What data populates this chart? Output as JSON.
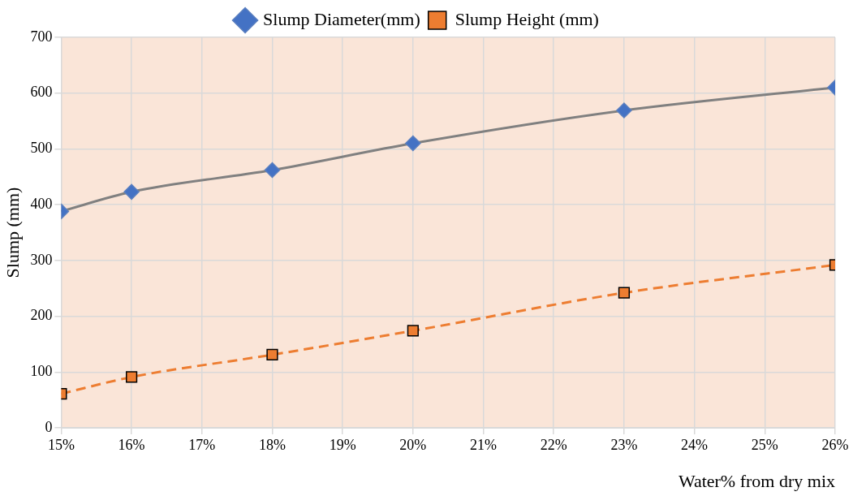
{
  "chart_data": {
    "type": "line",
    "xlabel": "Water% from dry mix",
    "ylabel": "Slump (mm)",
    "x": [
      15,
      16,
      18,
      20,
      23,
      26
    ],
    "series": [
      {
        "name": "Slump Diameter(mm)",
        "color": "#4472c4",
        "values": [
          388,
          423,
          462,
          510,
          569,
          610
        ],
        "marker": "diamond",
        "line_style": "solid"
      },
      {
        "name": "Slump Height (mm)",
        "color": "#ed7d31",
        "values": [
          61,
          91,
          131,
          174,
          242,
          292
        ],
        "marker": "square",
        "line_style": "dashed"
      }
    ],
    "xlim": [
      15,
      26
    ],
    "xticks": [
      {
        "value": 15,
        "label": "15%"
      },
      {
        "value": 16,
        "label": "16%"
      },
      {
        "value": 17,
        "label": "17%"
      },
      {
        "value": 18,
        "label": "18%"
      },
      {
        "value": 19,
        "label": "19%"
      },
      {
        "value": 20,
        "label": "20%"
      },
      {
        "value": 21,
        "label": "21%"
      },
      {
        "value": 22,
        "label": "22%"
      },
      {
        "value": 23,
        "label": "23%"
      },
      {
        "value": 24,
        "label": "24%"
      },
      {
        "value": 25,
        "label": "25%"
      },
      {
        "value": 26,
        "label": "26%"
      }
    ],
    "ylim": [
      0,
      700
    ],
    "yticks": [
      0,
      100,
      200,
      300,
      400,
      500,
      600,
      700
    ],
    "grid": true,
    "legend": "top"
  }
}
